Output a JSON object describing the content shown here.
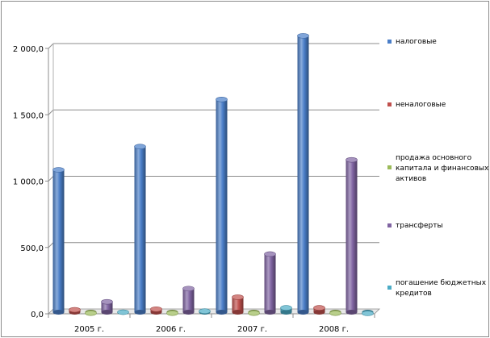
{
  "chart_data": {
    "type": "bar",
    "categories": [
      "2005 г.",
      "2006 г.",
      "2007 г.",
      "2008 г."
    ],
    "series": [
      {
        "name": "налоговые",
        "values": [
          1085,
          1260,
          1615,
          2095
        ],
        "color": "#4a7ec8"
      },
      {
        "name": "неналоговые",
        "values": [
          30,
          35,
          125,
          45
        ],
        "color": "#c0504d"
      },
      {
        "name": "продажа основного капитала и финансовых активов",
        "values": [
          5,
          5,
          5,
          5
        ],
        "color": "#9bbb59"
      },
      {
        "name": "трансферты",
        "values": [
          90,
          190,
          450,
          1160
        ],
        "color": "#8064a2"
      },
      {
        "name": "погашение бюджетных кредитов",
        "values": [
          12,
          20,
          45,
          3
        ],
        "color": "#4bacc6"
      }
    ],
    "y_ticks": [
      "0,0",
      "500,0",
      "1 000,0",
      "1 500,0",
      "2 000,0"
    ],
    "ylim": [
      0,
      2000
    ],
    "grid": true,
    "legend_position": "right"
  }
}
